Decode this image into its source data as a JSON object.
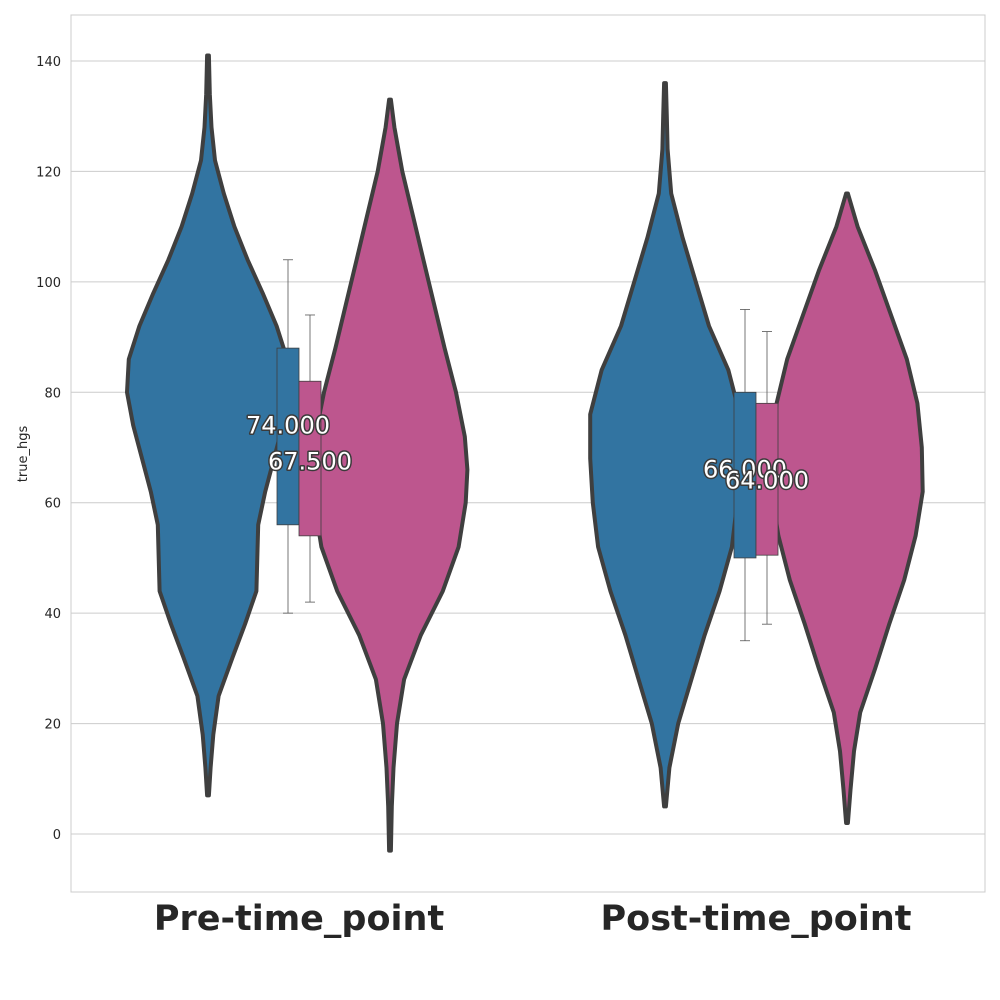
{
  "chart_data": {
    "type": "violin",
    "ylabel": "true_hgs",
    "xlabel": "",
    "title": "",
    "ylim": [
      -10.5,
      148.5
    ],
    "yticks": [
      0,
      20,
      40,
      60,
      80,
      100,
      120,
      140
    ],
    "categories": [
      "Pre-time_point",
      "Post-time_point"
    ],
    "grid": true,
    "series_colors": [
      "#3274a1",
      "#bd568e"
    ],
    "groups": [
      {
        "category": "Pre-time_point",
        "violins": [
          {
            "color": "#3274a1",
            "min": 7,
            "max": 141,
            "box": {
              "q1": 56,
              "median": 74,
              "q3": 88,
              "whisker_low": 40,
              "whisker_high": 104
            },
            "median_label": "74.000",
            "density": [
              [
                7,
                0.01
              ],
              [
                12,
                0.03
              ],
              [
                18,
                0.06
              ],
              [
                25,
                0.12
              ],
              [
                32,
                0.28
              ],
              [
                38,
                0.42
              ],
              [
                44,
                0.55
              ],
              [
                50,
                0.56
              ],
              [
                56,
                0.57
              ],
              [
                62,
                0.65
              ],
              [
                68,
                0.75
              ],
              [
                74,
                0.85
              ],
              [
                80,
                0.92
              ],
              [
                86,
                0.9
              ],
              [
                92,
                0.78
              ],
              [
                98,
                0.62
              ],
              [
                104,
                0.45
              ],
              [
                110,
                0.3
              ],
              [
                116,
                0.18
              ],
              [
                122,
                0.08
              ],
              [
                128,
                0.04
              ],
              [
                134,
                0.02
              ],
              [
                141,
                0.01
              ]
            ]
          },
          {
            "color": "#bd568e",
            "min": -3,
            "max": 133,
            "box": {
              "q1": 54,
              "median": 67.5,
              "q3": 82,
              "whisker_low": 42,
              "whisker_high": 94
            },
            "median_label": "67.500",
            "density": [
              [
                -3,
                0.01
              ],
              [
                5,
                0.02
              ],
              [
                12,
                0.04
              ],
              [
                20,
                0.08
              ],
              [
                28,
                0.16
              ],
              [
                36,
                0.35
              ],
              [
                44,
                0.6
              ],
              [
                52,
                0.78
              ],
              [
                60,
                0.86
              ],
              [
                66,
                0.88
              ],
              [
                72,
                0.85
              ],
              [
                80,
                0.75
              ],
              [
                88,
                0.62
              ],
              [
                96,
                0.5
              ],
              [
                104,
                0.38
              ],
              [
                112,
                0.26
              ],
              [
                120,
                0.14
              ],
              [
                128,
                0.05
              ],
              [
                133,
                0.01
              ]
            ]
          }
        ]
      },
      {
        "category": "Post-time_point",
        "violins": [
          {
            "color": "#3274a1",
            "min": 5,
            "max": 136,
            "box": {
              "q1": 50,
              "median": 66,
              "q3": 80,
              "whisker_low": 35,
              "whisker_high": 95
            },
            "median_label": "66.000",
            "density": [
              [
                5,
                0.01
              ],
              [
                12,
                0.05
              ],
              [
                20,
                0.15
              ],
              [
                28,
                0.3
              ],
              [
                36,
                0.45
              ],
              [
                44,
                0.62
              ],
              [
                52,
                0.76
              ],
              [
                60,
                0.82
              ],
              [
                68,
                0.85
              ],
              [
                76,
                0.85
              ],
              [
                84,
                0.72
              ],
              [
                92,
                0.5
              ],
              [
                100,
                0.35
              ],
              [
                108,
                0.2
              ],
              [
                116,
                0.07
              ],
              [
                124,
                0.03
              ],
              [
                130,
                0.02
              ],
              [
                136,
                0.01
              ]
            ]
          },
          {
            "color": "#bd568e",
            "min": 2,
            "max": 116,
            "box": {
              "q1": 50.5,
              "median": 64,
              "q3": 78,
              "whisker_low": 38,
              "whisker_high": 91
            },
            "median_label": "64.000",
            "density": [
              [
                2,
                0.01
              ],
              [
                8,
                0.04
              ],
              [
                15,
                0.08
              ],
              [
                22,
                0.15
              ],
              [
                30,
                0.32
              ],
              [
                38,
                0.48
              ],
              [
                46,
                0.65
              ],
              [
                54,
                0.78
              ],
              [
                62,
                0.86
              ],
              [
                70,
                0.85
              ],
              [
                78,
                0.8
              ],
              [
                86,
                0.68
              ],
              [
                94,
                0.5
              ],
              [
                102,
                0.32
              ],
              [
                110,
                0.12
              ],
              [
                116,
                0.01
              ]
            ]
          }
        ]
      }
    ]
  }
}
